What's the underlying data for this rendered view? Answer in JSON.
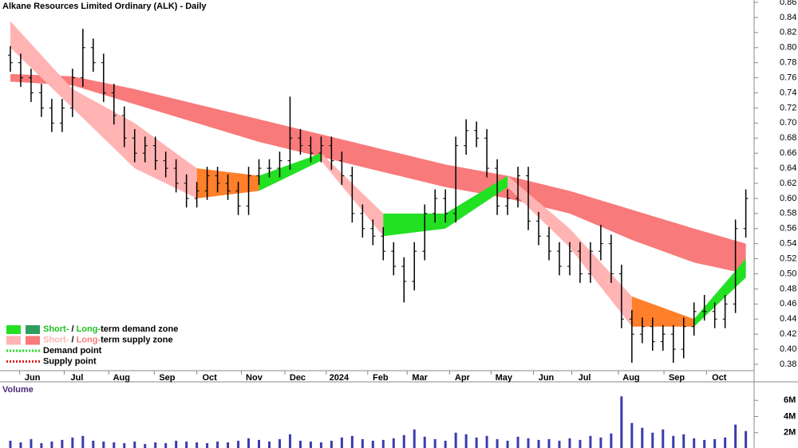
{
  "chart_data": {
    "type": "ohlc",
    "title": "Alkane Resources Limited Ordinary (ALK) - Daily",
    "x": [
      0,
      1,
      2,
      3,
      4,
      5,
      6,
      7,
      8,
      9,
      10,
      11,
      12,
      13,
      14,
      15,
      16,
      17,
      18,
      19,
      20,
      21,
      22,
      23,
      24,
      25,
      26,
      27,
      28,
      29,
      30,
      31,
      32,
      33,
      34,
      35,
      36,
      37,
      38,
      39,
      40,
      41,
      42,
      43,
      44,
      45,
      46,
      47,
      48,
      49,
      50,
      51,
      52,
      53,
      54,
      55,
      56,
      57,
      58,
      59,
      60,
      61,
      62,
      63,
      64,
      65,
      66,
      67,
      68,
      69,
      70,
      71
    ],
    "open": [
      0.79,
      0.78,
      0.76,
      0.74,
      0.72,
      0.7,
      0.72,
      0.76,
      0.8,
      0.78,
      0.74,
      0.71,
      0.68,
      0.66,
      0.67,
      0.65,
      0.64,
      0.62,
      0.6,
      0.61,
      0.63,
      0.62,
      0.61,
      0.59,
      0.63,
      0.64,
      0.64,
      0.65,
      0.68,
      0.67,
      0.66,
      0.67,
      0.65,
      0.63,
      0.58,
      0.56,
      0.55,
      0.53,
      0.51,
      0.49,
      0.53,
      0.58,
      0.6,
      0.58,
      0.67,
      0.69,
      0.68,
      0.64,
      0.59,
      0.6,
      0.63,
      0.57,
      0.55,
      0.53,
      0.51,
      0.53,
      0.5,
      0.53,
      0.54,
      0.5,
      0.44,
      0.42,
      0.43,
      0.41,
      0.42,
      0.4,
      0.43,
      0.45,
      0.45,
      0.44,
      0.46,
      0.56
    ],
    "high": [
      0.802,
      0.792,
      0.772,
      0.752,
      0.732,
      0.732,
      0.772,
      0.825,
      0.812,
      0.792,
      0.752,
      0.722,
      0.692,
      0.682,
      0.682,
      0.662,
      0.652,
      0.632,
      0.622,
      0.642,
      0.642,
      0.632,
      0.622,
      0.642,
      0.652,
      0.652,
      0.662,
      0.735,
      0.692,
      0.682,
      0.682,
      0.682,
      0.662,
      0.642,
      0.592,
      0.572,
      0.562,
      0.542,
      0.522,
      0.542,
      0.592,
      0.612,
      0.612,
      0.682,
      0.705,
      0.702,
      0.692,
      0.652,
      0.612,
      0.642,
      0.642,
      0.582,
      0.562,
      0.542,
      0.542,
      0.542,
      0.542,
      0.565,
      0.552,
      0.512,
      0.452,
      0.442,
      0.442,
      0.432,
      0.432,
      0.442,
      0.462,
      0.472,
      0.462,
      0.472,
      0.572,
      0.612
    ],
    "low": [
      0.768,
      0.748,
      0.728,
      0.708,
      0.688,
      0.688,
      0.708,
      0.748,
      0.768,
      0.728,
      0.698,
      0.668,
      0.648,
      0.648,
      0.638,
      0.628,
      0.608,
      0.588,
      0.588,
      0.598,
      0.608,
      0.598,
      0.578,
      0.578,
      0.618,
      0.628,
      0.628,
      0.638,
      0.658,
      0.648,
      0.648,
      0.638,
      0.618,
      0.568,
      0.548,
      0.538,
      0.518,
      0.498,
      0.462,
      0.478,
      0.518,
      0.568,
      0.568,
      0.568,
      0.658,
      0.668,
      0.628,
      0.578,
      0.578,
      0.588,
      0.558,
      0.538,
      0.518,
      0.498,
      0.498,
      0.488,
      0.488,
      0.518,
      0.488,
      0.428,
      0.382,
      0.408,
      0.398,
      0.398,
      0.382,
      0.388,
      0.418,
      0.438,
      0.428,
      0.428,
      0.448,
      0.548
    ],
    "close": [
      0.78,
      0.76,
      0.74,
      0.72,
      0.7,
      0.72,
      0.76,
      0.8,
      0.78,
      0.74,
      0.71,
      0.68,
      0.66,
      0.67,
      0.65,
      0.64,
      0.62,
      0.6,
      0.61,
      0.63,
      0.62,
      0.61,
      0.59,
      0.63,
      0.64,
      0.64,
      0.65,
      0.68,
      0.67,
      0.66,
      0.67,
      0.65,
      0.63,
      0.58,
      0.56,
      0.55,
      0.53,
      0.51,
      0.49,
      0.53,
      0.58,
      0.6,
      0.58,
      0.67,
      0.69,
      0.68,
      0.64,
      0.59,
      0.6,
      0.63,
      0.57,
      0.55,
      0.53,
      0.51,
      0.53,
      0.5,
      0.53,
      0.54,
      0.5,
      0.44,
      0.42,
      0.43,
      0.41,
      0.42,
      0.4,
      0.43,
      0.45,
      0.45,
      0.44,
      0.46,
      0.56,
      0.6
    ],
    "bar_color": "#000000",
    "band_x": [
      0,
      6,
      12,
      18,
      24,
      30,
      36,
      42,
      48,
      54,
      60,
      66,
      71
    ],
    "long_band": {
      "color": "#f87a7a",
      "upper": [
        0.765,
        0.762,
        0.745,
        0.725,
        0.705,
        0.685,
        0.665,
        0.645,
        0.63,
        0.61,
        0.585,
        0.56,
        0.54
      ],
      "lower": [
        0.755,
        0.75,
        0.725,
        0.7,
        0.675,
        0.655,
        0.635,
        0.615,
        0.6,
        0.58,
        0.545,
        0.515,
        0.5
      ]
    },
    "short_band": {
      "upper": [
        0.835,
        0.745,
        0.7,
        0.64,
        0.63,
        0.66,
        0.58,
        0.58,
        0.63,
        0.56,
        0.47,
        0.44,
        0.52
      ],
      "lower": [
        0.8,
        0.72,
        0.64,
        0.6,
        0.61,
        0.65,
        0.55,
        0.56,
        0.615,
        0.535,
        0.43,
        0.43,
        0.495
      ],
      "segment_colors": [
        "#ffb3b3",
        "#ffb3b3",
        "#ffb3b3",
        "#ff7f2a",
        "#22e022",
        "#ffb3b3",
        "#22e022",
        "#22e022",
        "#ffb3b3",
        "#ffb3b3",
        "#ff7f2a",
        "#22e022"
      ]
    },
    "xlim": [
      -1,
      71.8
    ],
    "xticks": [
      {
        "value": 0.9,
        "label": "Jun"
      },
      {
        "value": 5.2,
        "label": "Jul"
      },
      {
        "value": 9.5,
        "label": "Aug"
      },
      {
        "value": 13.9,
        "label": "Sep"
      },
      {
        "value": 18,
        "label": "Oct"
      },
      {
        "value": 22.3,
        "label": "Nov"
      },
      {
        "value": 26.5,
        "label": "Dec"
      },
      {
        "value": 30.5,
        "label": "2024"
      },
      {
        "value": 34.5,
        "label": "Feb"
      },
      {
        "value": 38.3,
        "label": "Mar"
      },
      {
        "value": 42.4,
        "label": "Apr"
      },
      {
        "value": 46.4,
        "label": "May"
      },
      {
        "value": 50.5,
        "label": "Jun"
      },
      {
        "value": 54.2,
        "label": "Jul"
      },
      {
        "value": 58.7,
        "label": "Aug"
      },
      {
        "value": 63.1,
        "label": "Sep"
      },
      {
        "value": 67.2,
        "label": "Oct"
      }
    ],
    "ylim": [
      0.38,
      0.86
    ],
    "yticks": [
      0.38,
      {
        "value": 0.4,
        "label": "0.40"
      },
      0.42,
      0.44,
      0.46,
      0.48,
      {
        "value": 0.5,
        "label": "0.50"
      },
      0.52,
      0.54,
      0.56,
      0.58,
      {
        "value": 0.6,
        "label": "0.60"
      },
      0.62,
      0.64,
      0.66,
      0.68,
      {
        "value": 0.7,
        "label": "0.70"
      },
      0.72,
      0.74,
      0.76,
      0.78,
      {
        "value": 0.8,
        "label": "0.80"
      },
      0.82,
      0.84,
      0.86
    ],
    "volume": {
      "title": "Volume",
      "color": "#3b3bb0",
      "values": [
        1.0,
        0.8,
        1.2,
        0.7,
        0.9,
        1.1,
        1.4,
        1.6,
        1.0,
        0.9,
        0.8,
        0.7,
        0.9,
        0.6,
        0.8,
        0.7,
        1.0,
        0.9,
        0.8,
        0.7,
        0.9,
        0.8,
        1.0,
        1.3,
        1.1,
        0.9,
        1.2,
        1.8,
        1.0,
        0.9,
        0.8,
        1.0,
        1.4,
        1.6,
        1.2,
        1.0,
        1.1,
        1.3,
        1.7,
        2.4,
        1.5,
        1.2,
        1.0,
        2.0,
        1.8,
        1.4,
        1.6,
        1.2,
        1.0,
        1.5,
        1.3,
        1.1,
        1.2,
        1.0,
        1.3,
        1.1,
        1.6,
        1.4,
        1.9,
        6.5,
        3.2,
        2.6,
        2.0,
        2.4,
        1.6,
        1.8,
        1.3,
        1.1,
        1.2,
        1.4,
        3.0,
        2.2
      ],
      "ylim": [
        0,
        8
      ],
      "yticks": [
        {
          "value": 2,
          "label": "2M"
        },
        {
          "value": 4,
          "label": "4M"
        },
        {
          "value": 6,
          "label": "6M"
        }
      ]
    },
    "legend": [
      {
        "swatches": [
          "#22e022",
          "#2e9e5e"
        ],
        "parts": [
          "Short-",
          "/",
          "Long-",
          "term demand zone"
        ],
        "part_colors": [
          "#22c022",
          "#000000",
          "#22c022",
          "#000000"
        ]
      },
      {
        "swatches": [
          "#ffb3b3",
          "#f87a7a"
        ],
        "parts": [
          "Short-",
          "/",
          "Long-",
          "term supply zone"
        ],
        "part_colors": [
          "#ffb3b3",
          "#000000",
          "#f87a7a",
          "#000000"
        ]
      },
      {
        "dotted": "#22e022",
        "parts": [
          "Demand point"
        ],
        "part_colors": [
          "#000000"
        ]
      },
      {
        "dotted": "#e02020",
        "parts": [
          "Supply point"
        ],
        "part_colors": [
          "#000000"
        ]
      }
    ]
  }
}
